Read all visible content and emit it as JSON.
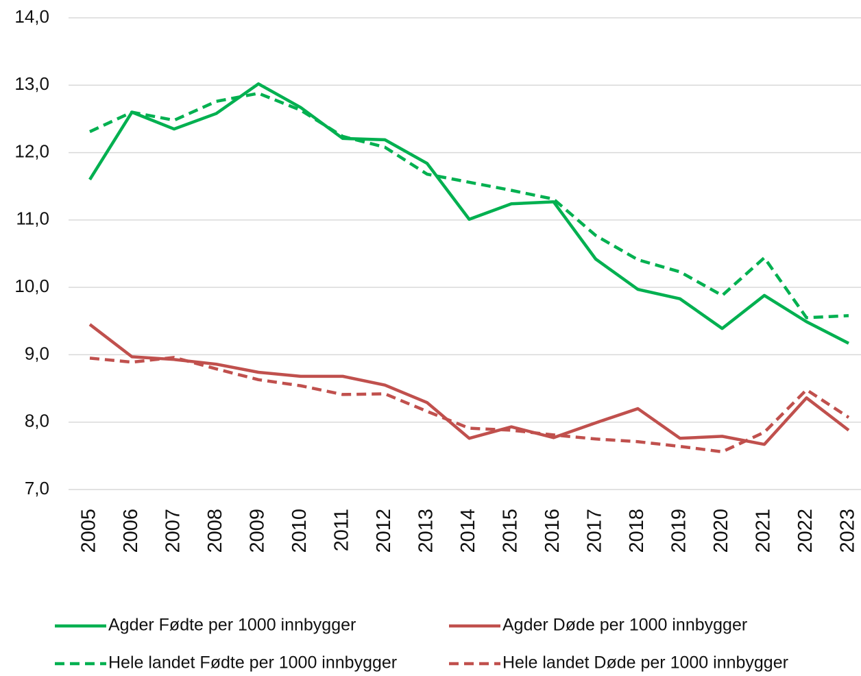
{
  "chart_data": {
    "type": "line",
    "categories": [
      "2005",
      "2006",
      "2007",
      "2008",
      "2009",
      "2010",
      "2011",
      "2012",
      "2013",
      "2014",
      "2015",
      "2016",
      "2017",
      "2018",
      "2019",
      "2020",
      "2021",
      "2022",
      "2023"
    ],
    "series": [
      {
        "name": "Agder Fødte per 1000 innbygger",
        "color": "#00b050",
        "style": "solid",
        "values": [
          11.6,
          12.6,
          12.35,
          12.58,
          13.02,
          12.67,
          12.21,
          12.19,
          11.84,
          11.01,
          11.24,
          11.27,
          10.42,
          9.97,
          9.83,
          9.39,
          9.88,
          9.49,
          9.17
        ]
      },
      {
        "name": "Agder Døde per 1000 innbygger",
        "color": "#c0504d",
        "style": "solid",
        "values": [
          9.45,
          8.97,
          8.93,
          8.86,
          8.74,
          8.68,
          8.68,
          8.55,
          8.29,
          7.76,
          7.93,
          7.77,
          7.99,
          8.2,
          7.76,
          7.79,
          7.67,
          8.36,
          7.88
        ]
      },
      {
        "name": "Hele landet Fødte per 1000 innbygger",
        "color": "#00b050",
        "style": "dashed",
        "values": [
          12.31,
          12.6,
          12.48,
          12.76,
          12.88,
          12.63,
          12.24,
          12.08,
          11.68,
          11.56,
          11.44,
          11.31,
          10.77,
          10.41,
          10.23,
          9.88,
          10.44,
          9.55,
          9.58
        ]
      },
      {
        "name": "Hele landet Døde per 1000 innbygger",
        "color": "#c0504d",
        "style": "dashed",
        "values": [
          8.95,
          8.89,
          8.96,
          8.79,
          8.63,
          8.54,
          8.41,
          8.42,
          8.16,
          7.91,
          7.88,
          7.81,
          7.75,
          7.71,
          7.64,
          7.56,
          7.85,
          8.48,
          8.07
        ]
      }
    ],
    "ylim": [
      7,
      14
    ],
    "yticks": [
      {
        "value": 7,
        "label": "7,0"
      },
      {
        "value": 8,
        "label": "8,0"
      },
      {
        "value": 9,
        "label": "9,0"
      },
      {
        "value": 10,
        "label": "10,0"
      },
      {
        "value": 11,
        "label": "11,0"
      },
      {
        "value": 12,
        "label": "12,0"
      },
      {
        "value": 13,
        "label": "13,0"
      },
      {
        "value": 14,
        "label": "14,0"
      }
    ],
    "grid": true,
    "legend": "bottom"
  }
}
